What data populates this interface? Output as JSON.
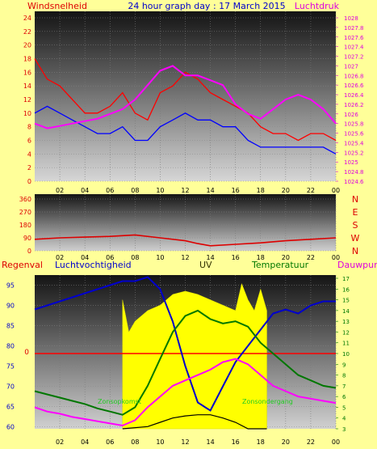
{
  "header": {
    "title": "24 hour graph day : 17 March 2015",
    "left_label": "Windsnelheid",
    "right_label": "Luchtdruk"
  },
  "colors": {
    "background": "#ffff99",
    "wind_speed": "#ff0000",
    "wind_gust": "#ff0000",
    "pressure": "#ff00ff",
    "wind_dir": "#dd0000",
    "humidity": "#0000cc",
    "temperature": "#007700",
    "dewpoint": "#ff00ff",
    "uv": "#ffff00",
    "rain": "#ff0000",
    "solar_theory": "#000000"
  },
  "chart_data": [
    {
      "id": "wind-pressure",
      "type": "line",
      "x_ticks": [
        "02",
        "04",
        "06",
        "08",
        "10",
        "12",
        "14",
        "16",
        "18",
        "20",
        "22",
        "00"
      ],
      "y_left": {
        "label": "Windsnelheid",
        "ticks": [
          0,
          2,
          4,
          6,
          8,
          10,
          12,
          14,
          16,
          18,
          20,
          22,
          24
        ],
        "ylim": [
          0,
          24
        ]
      },
      "y_right": {
        "label": "Luchtdruk",
        "ticks": [
          "1024.6",
          "1024.8",
          "1025",
          "1025.2",
          "1025.4",
          "1025.6",
          "1025.8",
          "1026",
          "1026.2",
          "1026.4",
          "1026.6",
          "1026.8",
          "1027",
          "1027.2",
          "1027.4",
          "1027.6",
          "1027.8",
          "1028"
        ],
        "ylim": [
          1024.6,
          1028
        ]
      },
      "x_hours": [
        0,
        1,
        2,
        3,
        4,
        5,
        6,
        7,
        8,
        9,
        10,
        11,
        12,
        13,
        14,
        15,
        16,
        17,
        18,
        19,
        20,
        21,
        22,
        23,
        24
      ],
      "series": [
        {
          "key": "gust",
          "axis": "left",
          "values": [
            18,
            15,
            14,
            12,
            10,
            10,
            11,
            13,
            10,
            9,
            13,
            14,
            16,
            15,
            13,
            12,
            11,
            10,
            8,
            7,
            7,
            6,
            7,
            7,
            6
          ]
        },
        {
          "key": "speed",
          "axis": "left",
          "values": [
            10,
            11,
            10,
            9,
            8,
            7,
            7,
            8,
            6,
            6,
            8,
            9,
            10,
            9,
            9,
            8,
            8,
            6,
            5,
            5,
            5,
            5,
            5,
            5,
            4
          ]
        },
        {
          "key": "pressure",
          "axis": "right",
          "values": [
            1025.8,
            1025.7,
            1025.75,
            1025.8,
            1025.85,
            1025.9,
            1026.0,
            1026.1,
            1026.3,
            1026.6,
            1026.9,
            1027.0,
            1026.8,
            1026.8,
            1026.7,
            1026.6,
            1026.2,
            1026.0,
            1025.9,
            1026.1,
            1026.3,
            1026.4,
            1026.3,
            1026.1,
            1025.8
          ]
        }
      ]
    },
    {
      "id": "wind-direction",
      "type": "line",
      "x_ticks": [
        "02",
        "04",
        "06",
        "08",
        "10",
        "12",
        "14",
        "16",
        "18",
        "20",
        "22",
        "00"
      ],
      "y_left": {
        "ticks": [
          0,
          90,
          180,
          270,
          360
        ],
        "ylim": [
          0,
          360
        ]
      },
      "y_right": {
        "ticks": [
          "N",
          "W",
          "S",
          "E",
          "N"
        ]
      },
      "x_hours": [
        0,
        2,
        4,
        6,
        8,
        10,
        12,
        13,
        14,
        16,
        18,
        20,
        22,
        24
      ],
      "series": [
        {
          "key": "direction",
          "axis": "left",
          "values": [
            80,
            90,
            95,
            100,
            110,
            90,
            70,
            50,
            35,
            45,
            55,
            70,
            80,
            90
          ]
        }
      ]
    },
    {
      "id": "temp-humidity-uv",
      "type": "line",
      "labels": {
        "rain": "Regenval",
        "humidity": "Luchtvochtigheid",
        "uv": "UV",
        "temperature": "Temperatuur",
        "dewpoint": "Dauwpunt"
      },
      "x_ticks": [
        "02",
        "04",
        "06",
        "08",
        "10",
        "12",
        "14",
        "16",
        "18",
        "20",
        "22",
        "00"
      ],
      "y_left": {
        "ticks": [
          60,
          65,
          70,
          75,
          80,
          85,
          90,
          95
        ],
        "ylim": [
          59.5,
          97.5
        ]
      },
      "y_right": {
        "ticks": [
          3,
          4,
          5,
          6,
          7,
          8,
          9,
          10,
          11,
          12,
          13,
          14,
          15,
          16,
          17
        ],
        "ylim": [
          3,
          17
        ]
      },
      "rain_marker": "0",
      "annotations": {
        "sunrise": "Zonsopkomst",
        "sunset": "Zonsondergang"
      },
      "x_hours": [
        0,
        1,
        2,
        3,
        4,
        5,
        6,
        7,
        8,
        9,
        10,
        11,
        12,
        13,
        14,
        15,
        16,
        17,
        18,
        19,
        20,
        21,
        22,
        23,
        24
      ],
      "series": [
        {
          "key": "humidity",
          "axis": "left",
          "values": [
            89,
            90,
            91,
            92,
            93,
            94,
            95,
            96,
            96,
            97,
            94,
            86,
            75,
            66,
            64,
            70,
            76,
            80,
            84,
            88,
            89,
            88,
            90,
            91,
            91
          ]
        },
        {
          "key": "temperature",
          "axis": "right",
          "values": [
            6.5,
            6.2,
            5.9,
            5.6,
            5.3,
            4.9,
            4.6,
            4.3,
            5.0,
            7.0,
            9.5,
            12.0,
            13.5,
            14.0,
            13.2,
            12.8,
            13.0,
            12.5,
            11.0,
            10.0,
            9.0,
            8.0,
            7.5,
            7.0,
            6.8
          ]
        },
        {
          "key": "dewpoint",
          "axis": "right",
          "values": [
            5.0,
            4.6,
            4.4,
            4.1,
            3.9,
            3.7,
            3.5,
            3.3,
            3.8,
            5.0,
            6.0,
            7.0,
            7.5,
            8.0,
            8.5,
            9.2,
            9.5,
            9.0,
            8.0,
            7.0,
            6.5,
            6.0,
            5.8,
            5.6,
            5.4
          ]
        },
        {
          "key": "uv_area",
          "axis": "right",
          "x_hours": [
            7.0,
            7.5,
            8.0,
            9.0,
            10.0,
            11.0,
            12.0,
            13.0,
            14.0,
            15.0,
            16.0,
            16.5,
            17.0,
            17.5,
            18.0,
            18.5
          ],
          "values": [
            15.0,
            12.0,
            13.0,
            14.0,
            14.5,
            15.5,
            15.8,
            15.5,
            15.0,
            14.5,
            14.0,
            16.5,
            15.0,
            14.0,
            16.0,
            14.0
          ]
        },
        {
          "key": "solar_theory",
          "axis": "right",
          "x_hours": [
            7.0,
            9.0,
            10.0,
            11.0,
            12.0,
            13.0,
            14.0,
            15.0,
            16.0,
            17.0,
            18.0,
            18.5
          ],
          "values": [
            3.0,
            3.2,
            3.6,
            4.0,
            4.2,
            4.3,
            4.3,
            4.0,
            3.6,
            3.0,
            3.0,
            3.0
          ]
        }
      ]
    }
  ]
}
